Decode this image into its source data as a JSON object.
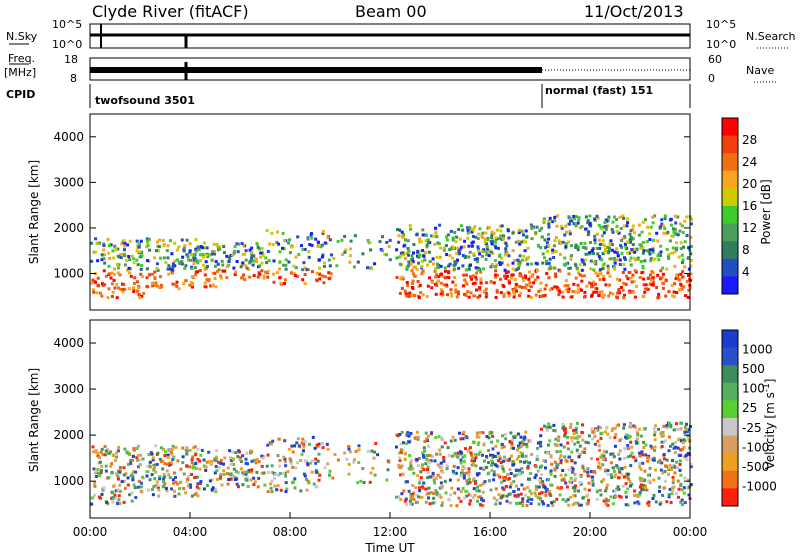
{
  "header": {
    "station": "Clyde River (fitACF)",
    "beam": "Beam 00",
    "date": "11/Oct/2013"
  },
  "strip_labels": {
    "nsky": "N.Sky",
    "nsky_ticks": [
      "10^5",
      "10^0"
    ],
    "nsky_right_ticks": [
      "10^5",
      "10^0"
    ],
    "nsearch": "N.Search",
    "freq_top": "Freq.",
    "freq_unit": "[MHz]",
    "freq_ticks": [
      "18",
      "8"
    ],
    "nave_ticks": [
      "60",
      "0"
    ],
    "nave": "Nave",
    "cpid": "CPID",
    "cpid_left": "twofsound 3501",
    "cpid_right": "normal (fast) 151"
  },
  "colors": {
    "power_scale": [
      "#1a1aff",
      "#2050c0",
      "#2f7f5f",
      "#4c9e5a",
      "#3ccc2c",
      "#cccc00",
      "#f5a520",
      "#f07010",
      "#f04010",
      "#ff0000"
    ],
    "velocity_scale": [
      "#1c3ccc",
      "#2850c8",
      "#3c8c5c",
      "#54b05c",
      "#58d030",
      "#c8c8c8",
      "#d8a060",
      "#f0a020",
      "#f07018",
      "#ff2010"
    ]
  },
  "chart_data": [
    {
      "type": "heatmap",
      "name": "power",
      "xlabel": "",
      "ylabel": "Slant Range [km]",
      "ylim": [
        200,
        4500
      ],
      "yticks": [
        "1000",
        "2000",
        "3000",
        "4000"
      ],
      "yticks_values": [
        1000,
        2000,
        3000,
        4000
      ],
      "colorbar_label": "Power [dB]",
      "colorbar_ticks": [
        "4",
        "8",
        "12",
        "16",
        "20",
        "24",
        "28"
      ],
      "colorbar_ticks_values": [
        4,
        8,
        12,
        16,
        20,
        24,
        28
      ],
      "xlim_hours": [
        0,
        24
      ]
    },
    {
      "type": "heatmap",
      "name": "velocity",
      "xlabel": "Time UT",
      "ylabel": "Slant Range [km]",
      "ylim": [
        200,
        4500
      ],
      "yticks": [
        "1000",
        "2000",
        "3000",
        "4000"
      ],
      "yticks_values": [
        1000,
        2000,
        3000,
        4000
      ],
      "xticks": [
        "00:00",
        "04:00",
        "08:00",
        "12:00",
        "16:00",
        "20:00",
        "00:00"
      ],
      "xticks_values_hours": [
        0,
        4,
        8,
        12,
        16,
        20,
        24
      ],
      "colorbar_label": "Velocity [m s^-1]",
      "colorbar_ticks": [
        "1000",
        "500",
        "100",
        "25",
        "-25",
        "-100",
        "-500",
        "-1000"
      ],
      "xlim_hours": [
        0,
        24
      ]
    }
  ]
}
